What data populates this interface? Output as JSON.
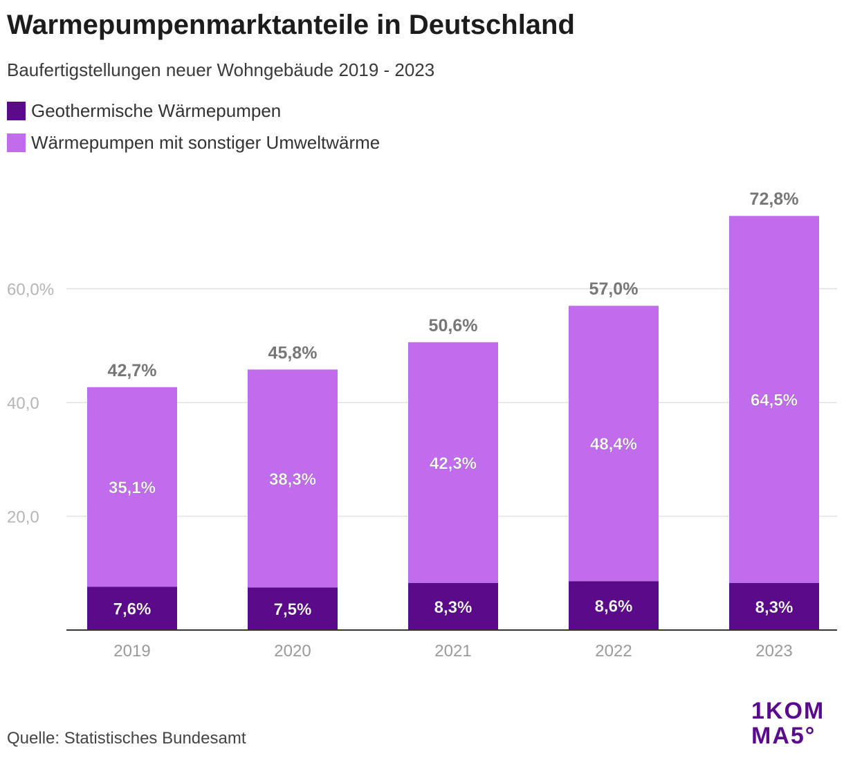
{
  "header": {
    "title": "Warmepumpenmarktanteile in Deutschland",
    "subtitle": "Baufertigstellungen neuer Wohngebäude 2019 - 2023"
  },
  "colors": {
    "geo": "#5b0a8a",
    "other": "#c16cec",
    "grid": "#e0e0e0",
    "axis_text": "#b5b5b5",
    "total_text": "#777777"
  },
  "legend": [
    {
      "label": "Geothermische Wärmepumpen",
      "color": "#5b0a8a"
    },
    {
      "label": "Wärmepumpen mit sonstiger Umweltwärme",
      "color": "#c16cec"
    }
  ],
  "chart_data": {
    "type": "bar",
    "stacked": true,
    "categories": [
      "2019",
      "2020",
      "2021",
      "2022",
      "2023"
    ],
    "series": [
      {
        "name": "Geothermische Wärmepumpen",
        "values": [
          7.6,
          7.5,
          8.3,
          8.6,
          8.3
        ],
        "labels": [
          "7,6%",
          "7,5%",
          "8,3%",
          "8,6%",
          "8,3%"
        ]
      },
      {
        "name": "Wärmepumpen mit sonstiger Umweltwärme",
        "values": [
          35.1,
          38.3,
          42.3,
          48.4,
          64.5
        ],
        "labels": [
          "35,1%",
          "38,3%",
          "42,3%",
          "48,4%",
          "64,5%"
        ]
      }
    ],
    "totals": [
      42.7,
      45.8,
      50.6,
      57.0,
      72.8
    ],
    "total_labels": [
      "42,7%",
      "45,8%",
      "50,6%",
      "57,0%",
      "72,8%"
    ],
    "yticks": [
      20,
      40,
      60
    ],
    "ytick_labels": [
      "20,0",
      "40,0",
      "60,0%"
    ],
    "ylim": [
      0,
      80
    ],
    "title": "Warmepumpenmarktanteile in Deutschland",
    "xlabel": "",
    "ylabel": ""
  },
  "footer": {
    "source": "Quelle: Statistisches Bundesamt",
    "logo_line1": "1KOM",
    "logo_line2": "MA5°"
  }
}
